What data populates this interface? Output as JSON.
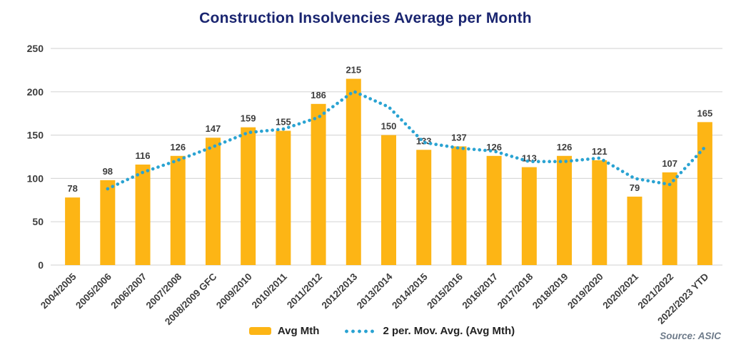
{
  "page": {
    "source_note": "Source: ASIC"
  },
  "legend": {
    "bar_label": "Avg Mth",
    "line_label": "2 per. Mov. Avg. (Avg Mth)"
  },
  "colors": {
    "bar": "#fdb515",
    "line_dots": "#2aa3d2",
    "title": "#1a2570",
    "axis_text": "#3d3d3d",
    "data_label": "#3d3d3d",
    "gridline": "#d9d9d9",
    "source": "#6e7b8a"
  },
  "chart_data": {
    "type": "bar",
    "title": "Construction Insolvencies Average per Month",
    "categories": [
      "2004/2005",
      "2005/2006",
      "2006/2007",
      "2007/2008",
      "2008/2009 GFC",
      "2009/2010",
      "2010/2011",
      "2011/2012",
      "2012/2013",
      "2013/2014",
      "2014/2015",
      "2015/2016",
      "2016/2017",
      "2017/2018",
      "2018/2019",
      "2019/2020",
      "2020/2021",
      "2021/2022",
      "2022/2023 YTD"
    ],
    "series": [
      {
        "name": "Avg Mth",
        "type": "bar",
        "values": [
          78,
          98,
          116,
          126,
          147,
          159,
          155,
          186,
          215,
          150,
          133,
          137,
          126,
          113,
          126,
          121,
          79,
          107,
          165
        ]
      },
      {
        "name": "2 per. Mov. Avg. (Avg Mth)",
        "type": "moving_average",
        "period": 2,
        "values": [
          null,
          88,
          107,
          121,
          136.5,
          153,
          157,
          170.5,
          200.5,
          182.5,
          141.5,
          135,
          131.5,
          119.5,
          119.5,
          123.5,
          100,
          93,
          136
        ]
      }
    ],
    "xlabel": "",
    "ylabel": "",
    "ylim": [
      0,
      250
    ],
    "ytick_interval": 50,
    "grid": true,
    "data_labels": true,
    "legend_position": "bottom"
  }
}
